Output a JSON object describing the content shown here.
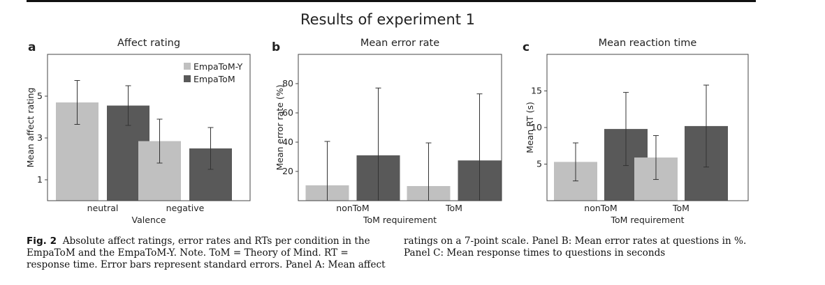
{
  "figure_title": "Results of experiment 1",
  "caption": {
    "label": "Fig. 2",
    "left_text": "Absolute affect ratings, error rates and RTs per condition in the EmpaToM and the EmpaToM-Y. Note. ToM = Theory of Mind. RT = response time. Error bars represent standard errors. Panel A: Mean affect",
    "right_text": "ratings on a 7-point scale. Panel B: Mean error rates at questions in %. Panel C: Mean response times to questions in seconds"
  },
  "colors": {
    "light": "#c0c0c0",
    "dark": "#595959",
    "axis": "#444444",
    "error": "#333333"
  },
  "chart_data": [
    {
      "panel": "a",
      "type": "bar",
      "title": "Affect rating",
      "xlabel": "Valence",
      "ylabel": "Mean affect rating",
      "ylim": [
        0,
        7
      ],
      "yticks": [
        1,
        3,
        5
      ],
      "categories": [
        "neutral",
        "negative"
      ],
      "legend": "top-right",
      "series": [
        {
          "name": "EmpaToM-Y",
          "color": "light",
          "values": [
            4.7,
            2.85
          ],
          "err": [
            1.05,
            1.05
          ]
        },
        {
          "name": "EmpaToM",
          "color": "dark",
          "values": [
            4.55,
            2.5
          ],
          "err": [
            0.95,
            1.0
          ]
        }
      ]
    },
    {
      "panel": "b",
      "type": "bar",
      "title": "Mean error rate",
      "xlabel": "ToM requirement",
      "ylabel": "Mean error rate (%)",
      "ylim": [
        0,
        100
      ],
      "yticks": [
        20,
        40,
        60,
        80
      ],
      "categories": [
        "nonToM",
        "ToM"
      ],
      "series": [
        {
          "color": "light",
          "values": [
            10.5,
            10
          ],
          "err": [
            30,
            29.5
          ]
        },
        {
          "color": "dark",
          "values": [
            31,
            27.5
          ],
          "err": [
            46,
            45.5
          ]
        }
      ]
    },
    {
      "panel": "c",
      "type": "bar",
      "title": "Mean reaction time",
      "xlabel": "ToM requirement",
      "ylabel": "Mean RT (s)",
      "ylim": [
        0,
        20
      ],
      "yticks": [
        5,
        10,
        15
      ],
      "categories": [
        "nonToM",
        "ToM"
      ],
      "series": [
        {
          "color": "light",
          "values": [
            5.3,
            5.9
          ],
          "err": [
            2.6,
            3.0
          ]
        },
        {
          "color": "dark",
          "values": [
            9.8,
            10.2
          ],
          "err": [
            5.0,
            5.6
          ]
        }
      ]
    }
  ]
}
